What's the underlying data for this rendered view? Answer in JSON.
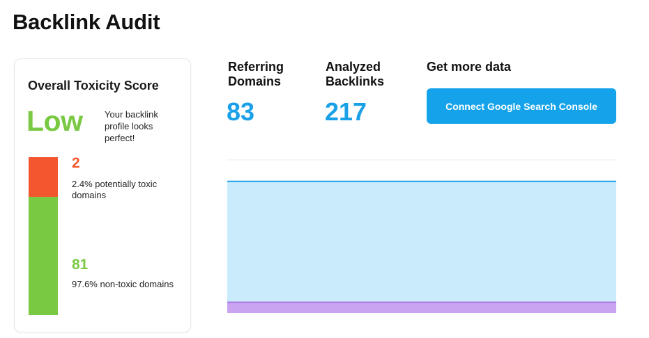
{
  "page": {
    "title": "Backlink Audit"
  },
  "toxicity": {
    "heading": "Overall Toxicity Score",
    "level": "Low",
    "description": "Your backlink profile looks perfect!",
    "toxic": {
      "count": "2",
      "text": "2.4% potentially toxic domains",
      "share": 0.024,
      "color": "#f4572f"
    },
    "non_toxic": {
      "count": "81",
      "text": "97.6% non-toxic domains",
      "share": 0.976,
      "color": "#7ac943"
    }
  },
  "metrics": {
    "referring_domains": {
      "label": "Referring Domains",
      "value": "83"
    },
    "analyzed_backlinks": {
      "label": "Analyzed Backlinks",
      "value": "217"
    }
  },
  "more_data": {
    "label": "Get more data",
    "button_label": "Connect Google Search Console"
  },
  "colors": {
    "accent": "#1aa0e8",
    "button": "#14a3ea",
    "area_fill": "#c9ebfb",
    "area_line": "#1aa0e8",
    "toxic_area": "#c9a4f0",
    "toxic_line": "#a875e6"
  },
  "chart_data": {
    "type": "area",
    "title": "",
    "xlabel": "",
    "ylabel": "",
    "grid": true,
    "ylim": [
      0,
      100
    ],
    "series": [
      {
        "values": [
          86,
          86,
          86,
          86,
          86,
          86,
          86,
          86,
          86,
          86,
          86,
          86,
          86,
          86,
          86,
          86,
          86,
          86,
          86,
          86,
          86,
          86,
          86,
          86,
          86,
          86,
          86,
          86,
          86,
          86,
          86,
          86,
          86,
          86,
          86,
          86,
          86,
          86,
          86,
          86,
          86,
          86,
          86,
          86,
          86,
          86,
          86,
          86,
          86,
          86,
          86,
          86,
          86,
          86,
          86,
          86,
          86,
          86,
          86,
          86,
          86,
          86,
          86,
          86,
          86,
          86,
          86,
          86,
          86,
          86,
          86,
          86,
          86,
          86,
          86,
          86,
          86,
          86,
          86,
          86,
          86,
          86,
          86,
          86,
          86,
          86,
          86,
          86,
          86,
          86,
          86,
          86,
          86,
          86,
          86,
          86,
          86,
          86,
          86,
          86,
          86,
          86,
          86,
          86,
          86,
          86,
          86,
          86,
          86,
          86,
          86,
          86,
          86,
          86,
          86,
          86,
          86,
          86,
          86,
          86
        ]
      },
      {
        "values": [
          7,
          7,
          7,
          7,
          7,
          7,
          7,
          7,
          7,
          7,
          7,
          7,
          7,
          7,
          7,
          7,
          7,
          7,
          7,
          7,
          7,
          7,
          7,
          7,
          7,
          7,
          7,
          7,
          7,
          7,
          7,
          7,
          7,
          7,
          7,
          7,
          7,
          7,
          7,
          7,
          7,
          7,
          7,
          7,
          7,
          7,
          7,
          7,
          7,
          7,
          7,
          7,
          7,
          7,
          7,
          7,
          7,
          7,
          7,
          7,
          7,
          7,
          7,
          7,
          7,
          7,
          7,
          7,
          7,
          7,
          7,
          7,
          7,
          7,
          7,
          7,
          7,
          7,
          7,
          7,
          7,
          7,
          7,
          7,
          7,
          7,
          7,
          7,
          7,
          7,
          7,
          7,
          7,
          7,
          7,
          7,
          7,
          7,
          7,
          7,
          7,
          7,
          7,
          7,
          7,
          7,
          7,
          7,
          7,
          7,
          7,
          7,
          7,
          7,
          7,
          7,
          7,
          7,
          7,
          7
        ]
      }
    ]
  }
}
